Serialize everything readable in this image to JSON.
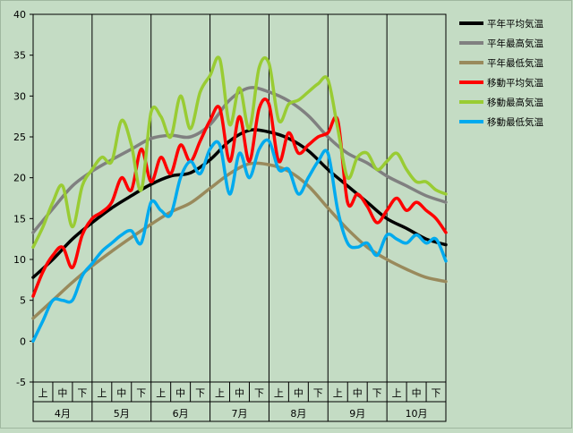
{
  "chart_data": {
    "type": "line",
    "title": "",
    "xlabel": "",
    "ylabel": "",
    "ylim": [
      -5,
      40
    ],
    "yticks": [
      -5,
      0,
      5,
      10,
      15,
      20,
      25,
      30,
      35,
      40
    ],
    "grid": "vertical",
    "legend_position": "right",
    "x_range": [
      0,
      21
    ],
    "decades": [
      "上",
      "中",
      "下",
      "上",
      "中",
      "下",
      "上",
      "中",
      "下",
      "上",
      "中",
      "下",
      "上",
      "中",
      "下",
      "上",
      "中",
      "下",
      "上",
      "中",
      "下"
    ],
    "months": [
      "4月",
      "5月",
      "6月",
      "7月",
      "8月",
      "9月",
      "10月"
    ],
    "series": [
      {
        "name": "平年平均気温",
        "color": "#000000",
        "x": [
          0,
          1,
          2,
          3,
          4,
          5,
          6,
          7,
          8,
          9,
          10,
          11,
          12,
          13,
          14,
          15,
          16,
          17,
          18,
          19,
          20,
          21
        ],
        "y": [
          7.8,
          10.0,
          12.5,
          14.5,
          16.3,
          17.8,
          19.2,
          20.2,
          20.6,
          22.2,
          24.5,
          25.8,
          25.6,
          24.8,
          23.3,
          21.0,
          19.0,
          17.0,
          15.0,
          13.8,
          12.5,
          11.8
        ]
      },
      {
        "name": "平年最高気温",
        "color": "#808080",
        "x": [
          0,
          1,
          2,
          3,
          4,
          5,
          6,
          7,
          8,
          9,
          10,
          11,
          12,
          13,
          14,
          15,
          16,
          17,
          18,
          19,
          20,
          21
        ],
        "y": [
          13.3,
          16.2,
          19.0,
          20.8,
          22.2,
          23.5,
          24.8,
          25.2,
          25.0,
          26.5,
          29.5,
          31.0,
          30.5,
          29.4,
          27.6,
          25.0,
          23.0,
          21.8,
          20.2,
          19.0,
          17.8,
          17.0
        ]
      },
      {
        "name": "平年最低気温",
        "color": "#998a5c",
        "x": [
          0,
          1,
          2,
          3,
          4,
          5,
          6,
          7,
          8,
          9,
          10,
          11,
          12,
          13,
          14,
          15,
          16,
          17,
          18,
          19,
          20,
          21
        ],
        "y": [
          2.8,
          5.0,
          7.2,
          9.2,
          11.0,
          12.7,
          14.3,
          15.8,
          16.9,
          18.7,
          20.5,
          21.7,
          21.6,
          20.8,
          19.0,
          16.3,
          13.7,
          11.5,
          10.0,
          8.8,
          7.8,
          7.3
        ]
      },
      {
        "name": "移動平均気温",
        "color": "#ff0000",
        "x": [
          0,
          0.5,
          1,
          1.5,
          2,
          2.5,
          3,
          3.5,
          4,
          4.5,
          5,
          5.5,
          6,
          6.5,
          7,
          7.5,
          8,
          8.5,
          9,
          9.5,
          10,
          10.5,
          11,
          11.5,
          12,
          12.5,
          13,
          13.5,
          14,
          14.5,
          15,
          15.5,
          16,
          16.5,
          17,
          17.5,
          18,
          18.5,
          19,
          19.5,
          20,
          20.5,
          21
        ],
        "y": [
          5.5,
          8.5,
          10.5,
          11.5,
          9.0,
          13.0,
          15.0,
          15.8,
          17.0,
          20.0,
          18.5,
          23.5,
          19.5,
          22.5,
          20.5,
          24.0,
          22.0,
          24.5,
          27.0,
          28.5,
          22.0,
          27.5,
          22.0,
          28.5,
          29.0,
          22.0,
          25.5,
          23.0,
          24.0,
          25.0,
          25.5,
          27.0,
          17.0,
          18.0,
          16.5,
          14.5,
          16.0,
          17.5,
          16.0,
          17.0,
          16.0,
          15.0,
          13.3
        ]
      },
      {
        "name": "移動最高気温",
        "color": "#99cc33",
        "x": [
          0,
          0.5,
          1,
          1.5,
          2,
          2.5,
          3,
          3.5,
          4,
          4.5,
          5,
          5.5,
          6,
          6.5,
          7,
          7.5,
          8,
          8.5,
          9,
          9.5,
          10,
          10.5,
          11,
          11.5,
          12,
          12.5,
          13,
          13.5,
          14,
          14.5,
          15,
          15.5,
          16,
          16.5,
          17,
          17.5,
          18,
          18.5,
          19,
          19.5,
          20,
          20.5,
          21
        ],
        "y": [
          11.5,
          14.0,
          17.0,
          19.0,
          14.0,
          19.0,
          21.0,
          22.5,
          22.0,
          27.0,
          24.0,
          18.5,
          28.0,
          27.5,
          25.0,
          30.0,
          26.0,
          30.5,
          32.5,
          34.5,
          26.5,
          31.0,
          26.0,
          33.5,
          34.0,
          27.0,
          29.0,
          29.5,
          30.5,
          31.5,
          32.0,
          26.0,
          20.0,
          22.5,
          23.0,
          21.0,
          22.0,
          23.0,
          21.0,
          19.5,
          19.5,
          18.5,
          18.0
        ]
      },
      {
        "name": "移動最低気温",
        "color": "#00aaee",
        "x": [
          0,
          0.5,
          1,
          1.5,
          2,
          2.5,
          3,
          3.5,
          4,
          4.5,
          5,
          5.5,
          6,
          6.5,
          7,
          7.5,
          8,
          8.5,
          9,
          9.5,
          10,
          10.5,
          11,
          11.5,
          12,
          12.5,
          13,
          13.5,
          14,
          14.5,
          15,
          15.5,
          16,
          16.5,
          17,
          17.5,
          18,
          18.5,
          19,
          19.5,
          20,
          20.5,
          21
        ],
        "y": [
          0.0,
          2.5,
          5.0,
          5.0,
          5.0,
          8.0,
          9.5,
          11.0,
          12.0,
          13.0,
          13.5,
          12.0,
          17.0,
          16.0,
          15.5,
          20.0,
          22.0,
          20.5,
          23.5,
          24.0,
          18.0,
          23.0,
          20.0,
          23.5,
          24.5,
          21.0,
          21.0,
          18.0,
          20.0,
          22.0,
          23.0,
          16.0,
          12.0,
          11.5,
          12.0,
          10.5,
          13.0,
          12.5,
          12.0,
          13.0,
          12.0,
          12.5,
          9.8
        ]
      }
    ]
  }
}
